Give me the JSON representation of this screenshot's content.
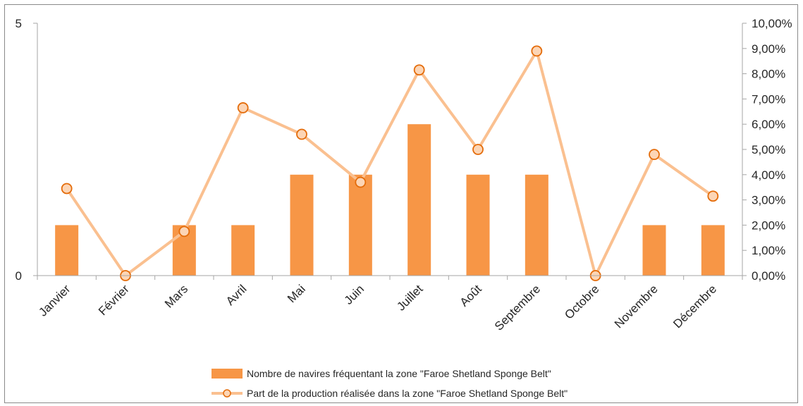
{
  "chart_data": {
    "type": "bar",
    "categories": [
      "Janvier",
      "Février",
      "Mars",
      "Avril",
      "Mai",
      "Juin",
      "Juillet",
      "Août",
      "Septembre",
      "Octobre",
      "Novembre",
      "Décembre"
    ],
    "series": [
      {
        "name": "Nombre de navires fréquentant la zone \"Faroe Shetland Sponge Belt\"",
        "type": "bar",
        "axis": "left",
        "values": [
          1,
          0,
          1,
          1,
          2,
          2,
          3,
          2,
          2,
          0,
          1,
          1
        ],
        "color": "#F79646"
      },
      {
        "name": "Part de la production réalisée dans la zone \"Faroe Shetland Sponge Belt\"",
        "type": "line",
        "axis": "right",
        "values": [
          3.45,
          0.0,
          1.75,
          6.65,
          5.6,
          3.7,
          8.15,
          5.0,
          8.9,
          0.0,
          4.8,
          3.15
        ],
        "color": "#FAC090",
        "marker_fill": "#FCD5B5",
        "marker_stroke": "#E46C0A"
      }
    ],
    "left_axis": {
      "ylim": [
        0,
        5
      ],
      "tick_labels": [
        "0",
        "5"
      ]
    },
    "right_axis": {
      "ylim": [
        0,
        10
      ],
      "tick_labels": [
        "0,00%",
        "1,00%",
        "2,00%",
        "3,00%",
        "4,00%",
        "5,00%",
        "6,00%",
        "7,00%",
        "8,00%",
        "9,00%",
        "10,00%"
      ]
    },
    "grid": false,
    "legend": "bottom"
  }
}
